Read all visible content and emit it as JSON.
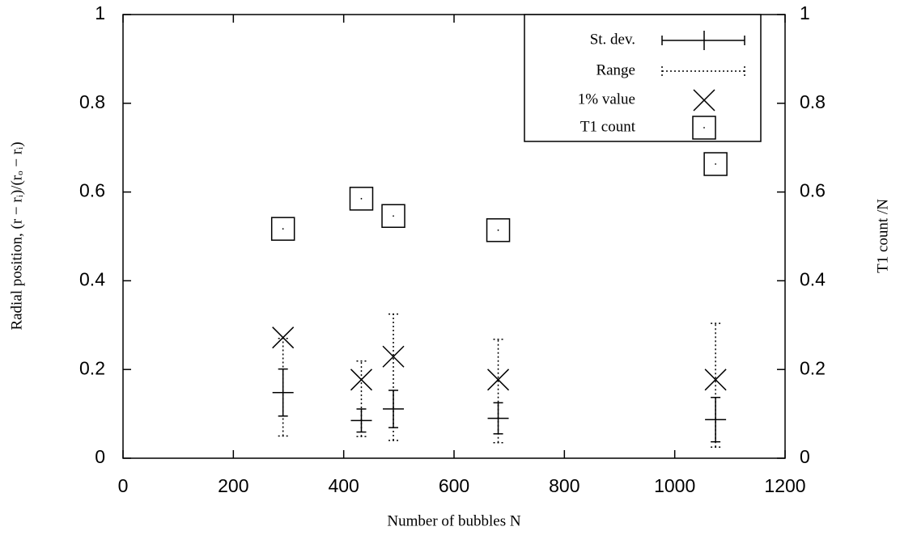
{
  "chart_data": {
    "type": "scatter",
    "x_label": "Number of bubbles N",
    "y_label": "Radial position, (r − rᵢ)/(rₒ − rᵢ)",
    "y2_label": "T1 count /N",
    "x": [
      290,
      432,
      490,
      680,
      1074
    ],
    "xlim": [
      0,
      1200
    ],
    "xticks": [
      0,
      200,
      400,
      600,
      800,
      1000,
      1200
    ],
    "ylim": [
      0,
      1
    ],
    "yticks": [
      0,
      0.2,
      0.4,
      0.6,
      0.8,
      1
    ],
    "y2lim": [
      0,
      1
    ],
    "y2ticks": [
      0,
      0.2,
      0.4,
      0.6,
      0.8,
      1
    ],
    "legend_position": "upper right",
    "series": [
      {
        "name": "St. dev.",
        "color": "#000000",
        "values": [
          0.148,
          0.085,
          0.111,
          0.09,
          0.087
        ],
        "errors": [
          0.053,
          0.026,
          0.042,
          0.035,
          0.05
        ]
      },
      {
        "name": "Range",
        "color": "#000000",
        "low": [
          0.05,
          0.049,
          0.04,
          0.035,
          0.025
        ],
        "high": [
          0.27,
          0.219,
          0.325,
          0.268,
          0.304
        ]
      },
      {
        "name": "1% value",
        "color": "#000000",
        "values": [
          0.272,
          0.177,
          0.229,
          0.177,
          0.177
        ]
      },
      {
        "name": "T1 count",
        "color": "#000000",
        "axis": "y2",
        "values": [
          0.517,
          0.585,
          0.546,
          0.514,
          0.663
        ]
      }
    ]
  }
}
